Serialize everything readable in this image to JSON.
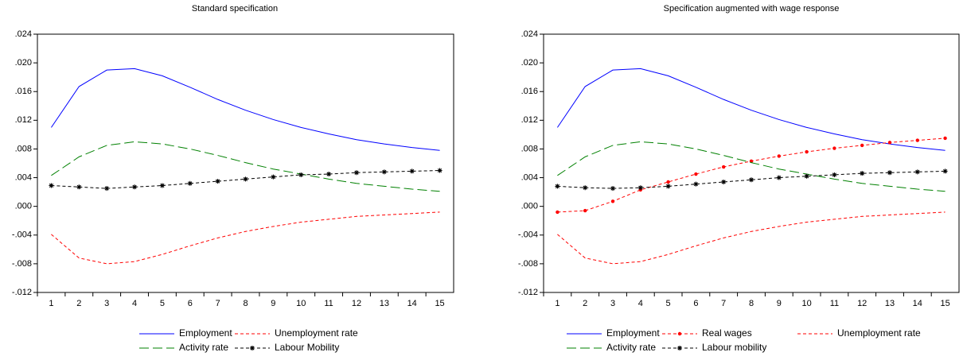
{
  "chart_data": [
    {
      "type": "line",
      "title": "Standard specification",
      "categories": [
        "1",
        "2",
        "3",
        "4",
        "5",
        "6",
        "7",
        "8",
        "9",
        "10",
        "11",
        "12",
        "13",
        "14",
        "15"
      ],
      "ylim": [
        -0.012,
        0.024
      ],
      "yticks": [
        {
          "value": -0.012,
          "label": "-.012"
        },
        {
          "value": -0.008,
          "label": "-.008"
        },
        {
          "value": -0.004,
          "label": "-.004"
        },
        {
          "value": 0,
          "label": ".000"
        },
        {
          "value": 0.004,
          "label": ".004"
        },
        {
          "value": 0.008,
          "label": ".008"
        },
        {
          "value": 0.012,
          "label": ".012"
        },
        {
          "value": 0.016,
          "label": ".016"
        },
        {
          "value": 0.02,
          "label": ".020"
        },
        {
          "value": 0.024,
          "label": ".024"
        }
      ],
      "series": [
        {
          "name": "Employment",
          "color": "#0000ff",
          "dash": "solid",
          "values": [
            0.011,
            0.0167,
            0.019,
            0.0192,
            0.0182,
            0.0166,
            0.0149,
            0.0134,
            0.0121,
            0.011,
            0.0101,
            0.0093,
            0.0087,
            0.0082,
            0.0078
          ]
        },
        {
          "name": "Unemployment rate",
          "color": "#ff0000",
          "dash": "dashed",
          "values": [
            -0.0039,
            -0.0072,
            -0.008,
            -0.0077,
            -0.0067,
            -0.0055,
            -0.0044,
            -0.0035,
            -0.0028,
            -0.0022,
            -0.0018,
            -0.0014,
            -0.0012,
            -0.001,
            -0.0008
          ]
        },
        {
          "name": "Activity rate",
          "color": "#008000",
          "dash": "longdash",
          "values": [
            0.0043,
            0.0069,
            0.0085,
            0.009,
            0.0087,
            0.008,
            0.0071,
            0.0061,
            0.0052,
            0.0045,
            0.0038,
            0.0032,
            0.0028,
            0.0024,
            0.0021
          ]
        },
        {
          "name": "Labour Mobility",
          "color": "#000000",
          "dash": "dashed",
          "marker": "asterisk",
          "values": [
            0.0029,
            0.0027,
            0.0025,
            0.0027,
            0.0029,
            0.0032,
            0.0035,
            0.0038,
            0.0041,
            0.0044,
            0.0045,
            0.0047,
            0.0048,
            0.0049,
            0.005
          ]
        }
      ]
    },
    {
      "type": "line",
      "title": "Specification augmented with wage response",
      "categories": [
        "1",
        "2",
        "3",
        "4",
        "5",
        "6",
        "7",
        "8",
        "9",
        "10",
        "11",
        "12",
        "13",
        "14",
        "15"
      ],
      "ylim": [
        -0.012,
        0.024
      ],
      "yticks": [
        {
          "value": -0.012,
          "label": "-.012"
        },
        {
          "value": -0.008,
          "label": "-.008"
        },
        {
          "value": -0.004,
          "label": "-.004"
        },
        {
          "value": 0,
          "label": ".000"
        },
        {
          "value": 0.004,
          "label": ".004"
        },
        {
          "value": 0.008,
          "label": ".008"
        },
        {
          "value": 0.012,
          "label": ".012"
        },
        {
          "value": 0.016,
          "label": ".016"
        },
        {
          "value": 0.02,
          "label": ".020"
        },
        {
          "value": 0.024,
          "label": ".024"
        }
      ],
      "series": [
        {
          "name": "Employment",
          "color": "#0000ff",
          "dash": "solid",
          "values": [
            0.011,
            0.0167,
            0.019,
            0.0192,
            0.0182,
            0.0166,
            0.0149,
            0.0134,
            0.0121,
            0.011,
            0.0101,
            0.0093,
            0.0087,
            0.0082,
            0.0078
          ]
        },
        {
          "name": "Real wages",
          "color": "#ff0000",
          "dash": "dashed",
          "marker": "dot",
          "values": [
            -0.0008,
            -0.0006,
            0.0007,
            0.0023,
            0.0034,
            0.0045,
            0.0055,
            0.0063,
            0.007,
            0.0076,
            0.0081,
            0.0085,
            0.0089,
            0.0092,
            0.0095
          ]
        },
        {
          "name": "Unemployment rate",
          "color": "#ff0000",
          "dash": "dashed",
          "values": [
            -0.0039,
            -0.0072,
            -0.008,
            -0.0077,
            -0.0067,
            -0.0055,
            -0.0044,
            -0.0035,
            -0.0028,
            -0.0022,
            -0.0018,
            -0.0014,
            -0.0012,
            -0.001,
            -0.0008
          ]
        },
        {
          "name": "Activity rate",
          "color": "#008000",
          "dash": "longdash",
          "values": [
            0.0043,
            0.0069,
            0.0085,
            0.009,
            0.0087,
            0.008,
            0.0071,
            0.0061,
            0.0052,
            0.0045,
            0.0038,
            0.0032,
            0.0028,
            0.0024,
            0.0021
          ]
        },
        {
          "name": "Labour mobility",
          "color": "#000000",
          "dash": "dashed",
          "marker": "asterisk",
          "values": [
            0.0028,
            0.0026,
            0.0025,
            0.0026,
            0.0028,
            0.0031,
            0.0034,
            0.0037,
            0.004,
            0.0042,
            0.0044,
            0.0046,
            0.0047,
            0.0048,
            0.0049
          ]
        }
      ]
    }
  ]
}
